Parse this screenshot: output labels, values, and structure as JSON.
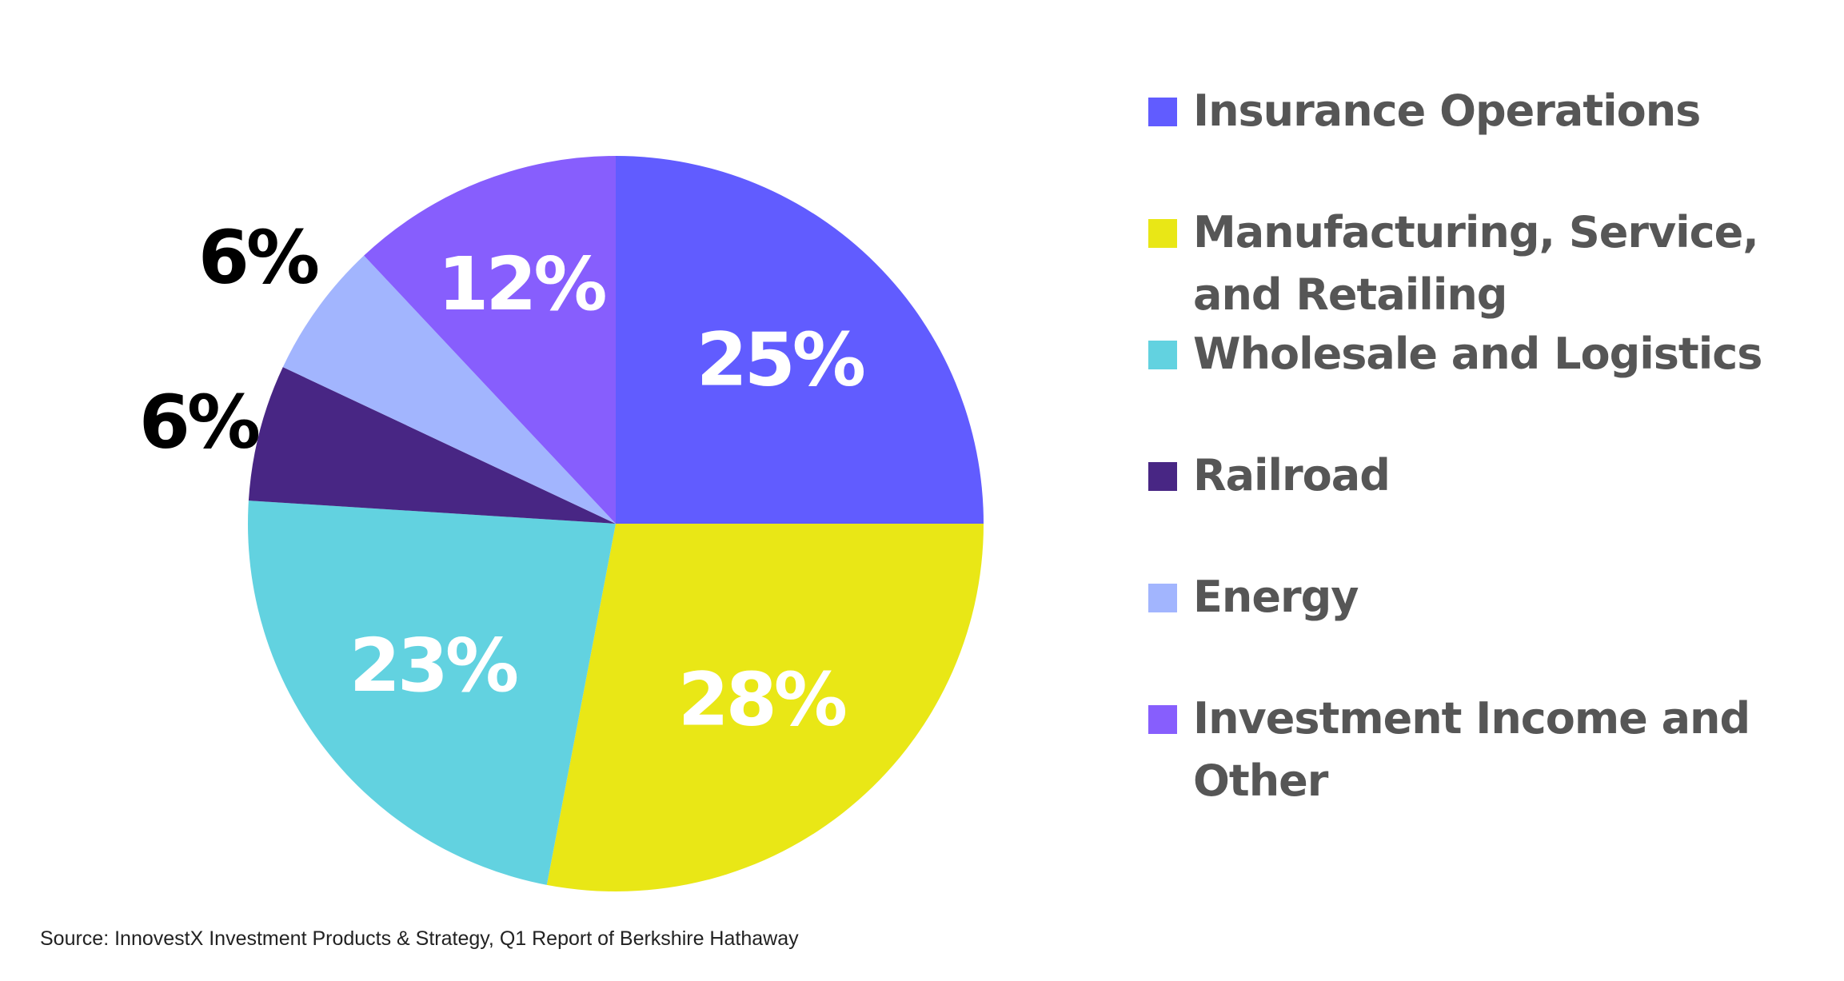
{
  "chart_data": {
    "type": "pie",
    "title": "",
    "start_angle_deg": 0,
    "direction": "clockwise",
    "slices": [
      {
        "name": "Insurance Operations",
        "value": 25,
        "label": "25%",
        "color": "#615cff",
        "label_color": "#ffffff"
      },
      {
        "name": "Manufacturing, Service, and Retailing",
        "value": 28,
        "label": "28%",
        "color": "#e9e716",
        "label_color": "#ffffff"
      },
      {
        "name": "Wholesale and Logistics",
        "value": 23,
        "label": "23%",
        "color": "#62d2e0",
        "label_color": "#ffffff"
      },
      {
        "name": "Railroad",
        "value": 6,
        "label": "6%",
        "color": "#482684",
        "label_color": "#000000"
      },
      {
        "name": "Energy",
        "value": 6,
        "label": "6%",
        "color": "#a2b5fe",
        "label_color": "#000000"
      },
      {
        "name": "Investment Income and Other",
        "value": 12,
        "label": "12%",
        "color": "#875efd",
        "label_color": "#ffffff"
      }
    ],
    "legend": {
      "position": "right",
      "entries": [
        "Insurance Operations",
        "Manufacturing, Service, and Retailing",
        "Wholesale and Logistics",
        "Railroad",
        "Energy",
        "Investment Income and Other"
      ]
    }
  },
  "source": "Source: InnovestX Investment Products & Strategy, Q1 Report of Berkshire Hathaway"
}
